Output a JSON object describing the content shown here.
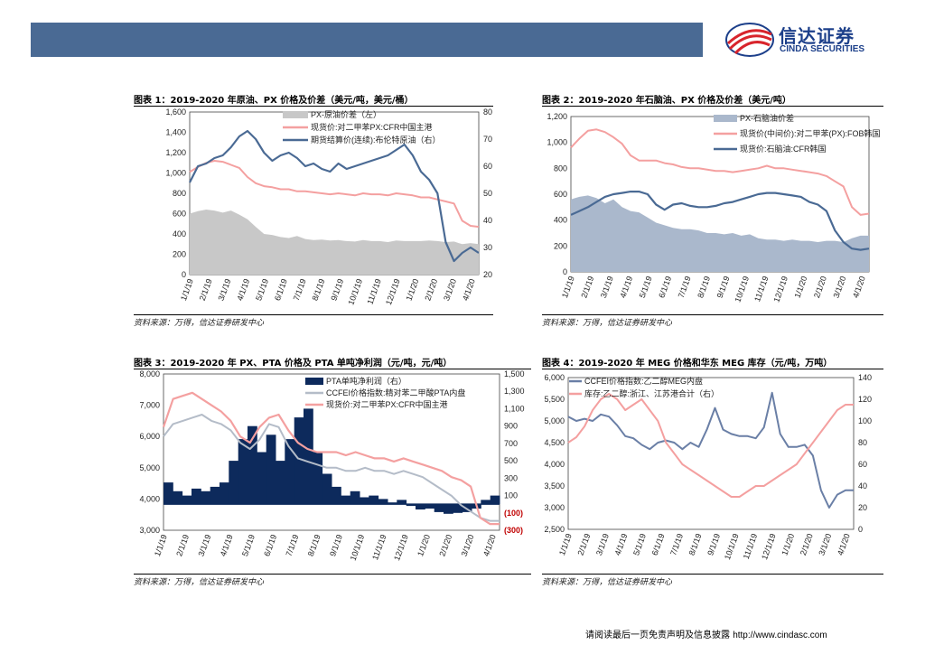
{
  "header": {
    "logo_cn": "信达证券",
    "logo_en": "CINDA SECURITIES",
    "brand_color": "#1c3f8a",
    "banner_color": "#4a6a94"
  },
  "footer": {
    "text": "请阅读最后一页免责声明及信息披露",
    "url": "http://www.cindasc.com"
  },
  "source_note": "资料来源：万得，信达证券研发中心",
  "chart_data": [
    {
      "id": "c1",
      "type": "line",
      "title": "图表 1：2019-2020 年原油、PX 价格及价差（美元/吨，美元/桶）",
      "x_ticks": [
        "1/1/19",
        "2/1/19",
        "3/1/19",
        "4/1/19",
        "5/1/19",
        "6/1/19",
        "7/1/19",
        "8/1/19",
        "9/1/19",
        "10/1/19",
        "11/1/19",
        "12/1/19",
        "1/1/20",
        "2/1/20",
        "3/1/20",
        "4/1/20"
      ],
      "y_left": {
        "min": 0,
        "max": 1600,
        "ticks": [
          "0",
          "200",
          "400",
          "600",
          "800",
          "1,000",
          "1,200",
          "1,400",
          "1,600"
        ]
      },
      "y_right": {
        "min": 20,
        "max": 80,
        "ticks": [
          "20",
          "30",
          "40",
          "50",
          "60",
          "70",
          "80"
        ]
      },
      "series": [
        {
          "name": "PX-原油价差（左）",
          "kind": "area",
          "axis": "left",
          "color": "#c8c8c8",
          "values": [
            600,
            625,
            640,
            630,
            610,
            630,
            590,
            545,
            470,
            400,
            390,
            370,
            360,
            380,
            350,
            340,
            345,
            335,
            340,
            330,
            325,
            340,
            330,
            330,
            320,
            335,
            330,
            330,
            330,
            335,
            330,
            320,
            325,
            300,
            310,
            300
          ]
        },
        {
          "name": "现货价:对二甲苯PX:CFR中国主港",
          "kind": "line",
          "axis": "left",
          "color": "#f4a0a0",
          "values": [
            1010,
            1060,
            1100,
            1120,
            1110,
            1080,
            1050,
            960,
            900,
            870,
            860,
            840,
            840,
            820,
            820,
            810,
            800,
            790,
            800,
            790,
            780,
            800,
            790,
            790,
            780,
            800,
            790,
            780,
            760,
            760,
            740,
            720,
            700,
            530,
            480,
            470
          ]
        },
        {
          "name": "期货结算价(连续):布伦特原油（右）",
          "kind": "line",
          "axis": "right",
          "color": "#4a6a94",
          "values": [
            54,
            60,
            61,
            63,
            64,
            67,
            71,
            73,
            70,
            65,
            62,
            64,
            65,
            63,
            60,
            61,
            59,
            58,
            61,
            59,
            60,
            61,
            62,
            63,
            64,
            66,
            68,
            64,
            58,
            55,
            50,
            32,
            25,
            28,
            30,
            28
          ]
        }
      ]
    },
    {
      "id": "c2",
      "type": "line",
      "title": "图表 2：2019-2020 年石脑油、PX 价格及价差（美元/吨）",
      "x_ticks": [
        "1/1/19",
        "2/1/19",
        "3/1/19",
        "4/1/19",
        "5/1/19",
        "6/1/19",
        "7/1/19",
        "8/1/19",
        "9/1/19",
        "10/1/19",
        "11/1/19",
        "12/1/19",
        "1/1/20",
        "2/1/20",
        "3/1/20",
        "4/1/20"
      ],
      "y_left": {
        "min": 0,
        "max": 1200,
        "ticks": [
          "0",
          "200",
          "400",
          "600",
          "800",
          "1,000",
          "1,200"
        ]
      },
      "series": [
        {
          "name": "PX-石脑油价差",
          "kind": "area",
          "axis": "left",
          "color": "#aab8cc",
          "values": [
            560,
            580,
            590,
            570,
            530,
            560,
            500,
            470,
            460,
            420,
            380,
            360,
            340,
            330,
            330,
            320,
            300,
            300,
            290,
            300,
            280,
            290,
            260,
            250,
            250,
            240,
            250,
            240,
            240,
            230,
            240,
            240,
            230,
            260,
            280,
            280
          ]
        },
        {
          "name": "现货价(中间价):对二甲苯(PX):FOB韩国",
          "kind": "line",
          "axis": "left",
          "color": "#f4a0a0",
          "values": [
            960,
            1030,
            1090,
            1100,
            1080,
            1040,
            990,
            900,
            860,
            860,
            860,
            840,
            830,
            810,
            800,
            800,
            790,
            780,
            780,
            770,
            780,
            790,
            800,
            820,
            800,
            800,
            790,
            780,
            770,
            760,
            740,
            700,
            660,
            500,
            440,
            450
          ]
        },
        {
          "name": "现货价:石脑油:CFR韩国",
          "kind": "line",
          "axis": "left",
          "color": "#4a6a94",
          "values": [
            440,
            470,
            500,
            540,
            580,
            600,
            610,
            620,
            620,
            600,
            520,
            480,
            520,
            530,
            510,
            500,
            500,
            510,
            530,
            540,
            560,
            580,
            600,
            610,
            610,
            600,
            590,
            580,
            540,
            520,
            470,
            320,
            230,
            180,
            170,
            180
          ]
        }
      ]
    },
    {
      "id": "c3",
      "type": "line",
      "title": "图表 3：2019-2020 年 PX、PTA 价格及 PTA 单吨净利润（元/吨，元/吨）",
      "x_ticks": [
        "1/1/19",
        "2/1/19",
        "3/1/19",
        "4/1/19",
        "5/1/19",
        "6/1/19",
        "7/1/19",
        "8/1/19",
        "9/1/19",
        "10/1/19",
        "11/1/19",
        "12/1/19",
        "1/1/20",
        "2/1/20",
        "3/1/20",
        "4/1/20"
      ],
      "y_left": {
        "min": 3000,
        "max": 8000,
        "ticks": [
          "3,000",
          "4,000",
          "5,000",
          "6,000",
          "7,000",
          "8,000"
        ]
      },
      "y_right": {
        "min": -300,
        "max": 1500,
        "ticks": [
          "(300)",
          "(100)",
          "100",
          "300",
          "500",
          "700",
          "900",
          "1,100",
          "1,300",
          "1,500"
        ]
      },
      "series": [
        {
          "name": "PTA单吨净利润（右）",
          "kind": "bar",
          "axis": "right",
          "color": "#0d2a5c",
          "values": [
            250,
            150,
            100,
            180,
            150,
            200,
            250,
            500,
            750,
            900,
            600,
            800,
            500,
            750,
            1000,
            1100,
            600,
            350,
            200,
            100,
            150,
            80,
            100,
            60,
            20,
            50,
            -20,
            -60,
            -50,
            -90,
            -110,
            -100,
            -90,
            -50,
            50,
            100
          ]
        },
        {
          "name": "CCFEI价格指数:精对苯二甲酸PTA内盘",
          "kind": "line",
          "axis": "left",
          "color": "#b4bcc8",
          "values": [
            6000,
            6400,
            6500,
            6600,
            6700,
            6500,
            6400,
            6200,
            5800,
            5600,
            5900,
            6400,
            6300,
            5700,
            5300,
            5200,
            5100,
            5000,
            5000,
            4900,
            4900,
            5000,
            4900,
            4900,
            4800,
            4900,
            4800,
            4700,
            4500,
            4300,
            4100,
            3800,
            3600,
            3400,
            3300,
            3300
          ]
        },
        {
          "name": "现货价:对二甲苯PX:CFR中国主港",
          "kind": "line",
          "axis": "left",
          "color": "#f4a0a0",
          "values": [
            6300,
            7200,
            7300,
            7400,
            7200,
            7000,
            6800,
            6500,
            6000,
            5800,
            6300,
            6600,
            6700,
            6200,
            5800,
            5600,
            5500,
            5500,
            5500,
            5400,
            5500,
            5400,
            5300,
            5300,
            5200,
            5300,
            5200,
            5100,
            5000,
            4900,
            4700,
            4600,
            4400,
            3400,
            3200,
            3200
          ]
        }
      ]
    },
    {
      "id": "c4",
      "type": "line",
      "title": "图表 4：2019-2020 年 MEG 价格和华东 MEG 库存（元/吨，万吨）",
      "x_ticks": [
        "1/1/19",
        "2/1/19",
        "3/1/19",
        "4/1/19",
        "5/1/19",
        "6/1/19",
        "7/1/19",
        "8/1/19",
        "9/1/19",
        "10/1/19",
        "11/1/19",
        "12/1/19",
        "1/1/20",
        "2/1/20",
        "3/1/20",
        "4/1/20"
      ],
      "y_left": {
        "min": 2500,
        "max": 6000,
        "ticks": [
          "2,500",
          "3,000",
          "3,500",
          "4,000",
          "4,500",
          "5,000",
          "5,500",
          "6,000"
        ]
      },
      "y_right": {
        "min": 0,
        "max": 140,
        "ticks": [
          "0",
          "20",
          "40",
          "60",
          "80",
          "100",
          "120",
          "140"
        ]
      },
      "series": [
        {
          "name": "CCFEI价格指数:乙二醇MEG内盘",
          "kind": "line",
          "axis": "left",
          "color": "#6a7fa6",
          "values": [
            5100,
            5000,
            5050,
            5000,
            5150,
            5100,
            4900,
            4650,
            4600,
            4450,
            4350,
            4500,
            4550,
            4500,
            4350,
            4500,
            4400,
            4800,
            5300,
            4800,
            4700,
            4650,
            4650,
            4600,
            4850,
            5650,
            4700,
            4400,
            4400,
            4450,
            4200,
            3400,
            3000,
            3300,
            3400,
            3400
          ]
        },
        {
          "name": "库存:乙二醇:浙江、江苏港合计（右）",
          "kind": "line",
          "axis": "right",
          "color": "#f4a0a0",
          "values": [
            80,
            85,
            95,
            110,
            120,
            125,
            120,
            110,
            115,
            120,
            110,
            100,
            80,
            70,
            60,
            55,
            50,
            45,
            40,
            35,
            30,
            30,
            35,
            40,
            40,
            45,
            50,
            55,
            60,
            70,
            80,
            90,
            100,
            110,
            115,
            115
          ]
        }
      ]
    }
  ]
}
